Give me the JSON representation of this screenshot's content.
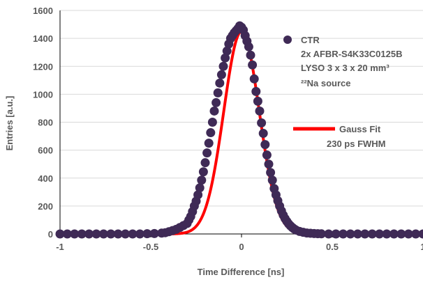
{
  "chart_data": {
    "type": "scatter",
    "xlabel": "Time Difference [ns]",
    "ylabel": "Entries [a.u.]",
    "xlim": [
      -1,
      1
    ],
    "ylim": [
      0,
      1600
    ],
    "xticks": [
      -1,
      -0.5,
      0,
      0.5,
      1
    ],
    "xtick_labels": [
      "-1",
      "-0.5",
      "0",
      "0.5",
      "1"
    ],
    "yticks": [
      0,
      200,
      400,
      600,
      800,
      1000,
      1200,
      1400,
      1600
    ],
    "ytick_labels": [
      "0",
      "200",
      "400",
      "600",
      "800",
      "1000",
      "1200",
      "1400",
      "1600"
    ],
    "grid": "horizontal",
    "legend_placement": "right",
    "series": [
      {
        "name": "CTR",
        "legend_lines": [
          "CTR",
          "2x AFBR-S4K33C0125B",
          "LYSO 3 x 3 x 20 mm³",
          "²²Na source"
        ],
        "marker": "circle",
        "color": "#3f2a56",
        "x": [
          -1.0,
          -0.96,
          -0.92,
          -0.88,
          -0.84,
          -0.8,
          -0.76,
          -0.72,
          -0.68,
          -0.64,
          -0.6,
          -0.56,
          -0.52,
          -0.48,
          -0.44,
          -0.42,
          -0.4,
          -0.38,
          -0.36,
          -0.34,
          -0.32,
          -0.3,
          -0.29,
          -0.28,
          -0.27,
          -0.26,
          -0.25,
          -0.24,
          -0.23,
          -0.22,
          -0.21,
          -0.2,
          -0.19,
          -0.18,
          -0.17,
          -0.16,
          -0.15,
          -0.14,
          -0.13,
          -0.12,
          -0.11,
          -0.1,
          -0.09,
          -0.08,
          -0.07,
          -0.06,
          -0.05,
          -0.04,
          -0.03,
          -0.02,
          -0.01,
          0.0,
          0.01,
          0.02,
          0.03,
          0.04,
          0.05,
          0.06,
          0.07,
          0.08,
          0.09,
          0.1,
          0.11,
          0.12,
          0.13,
          0.14,
          0.15,
          0.16,
          0.17,
          0.18,
          0.19,
          0.2,
          0.21,
          0.22,
          0.23,
          0.24,
          0.25,
          0.26,
          0.27,
          0.28,
          0.29,
          0.3,
          0.32,
          0.34,
          0.36,
          0.38,
          0.4,
          0.42,
          0.44,
          0.48,
          0.52,
          0.56,
          0.6,
          0.64,
          0.68,
          0.72,
          0.76,
          0.8,
          0.84,
          0.88,
          0.92,
          0.96,
          1.0
        ],
        "y": [
          0,
          0,
          0,
          0,
          0,
          0,
          0,
          0,
          0,
          0,
          0,
          0,
          2,
          3,
          6,
          9,
          16,
          24,
          33,
          46,
          60,
          75,
          100,
          125,
          160,
          200,
          235,
          280,
          330,
          385,
          445,
          510,
          580,
          650,
          725,
          800,
          880,
          940,
          1010,
          1080,
          1140,
          1200,
          1260,
          1310,
          1360,
          1400,
          1420,
          1440,
          1455,
          1470,
          1490,
          1480,
          1460,
          1420,
          1380,
          1340,
          1280,
          1210,
          1110,
          1020,
          950,
          880,
          795,
          720,
          640,
          565,
          500,
          440,
          385,
          325,
          280,
          238,
          200,
          165,
          135,
          110,
          90,
          72,
          58,
          46,
          36,
          28,
          18,
          12,
          7,
          5,
          3,
          2,
          1,
          0,
          0,
          0,
          0,
          0,
          0,
          0,
          0,
          0,
          0,
          0,
          0,
          0,
          0
        ]
      },
      {
        "name": "Gauss Fit",
        "legend_lines": [
          "Gauss Fit",
          "230 ps FWHM"
        ],
        "type": "line",
        "color": "#ff0000",
        "fit": {
          "function": "gauss",
          "amplitude": 1450,
          "mean": 0.0,
          "fwhm": 0.23
        }
      }
    ]
  }
}
